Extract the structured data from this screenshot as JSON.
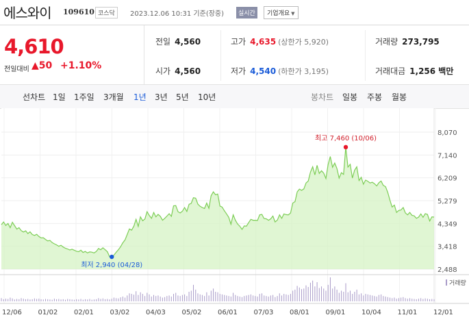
{
  "header": {
    "stock_name": "에스와이",
    "stock_code": "109610",
    "market_badge": "코스닥",
    "timestamp": "2023.12.06 10:31 기준(장중)",
    "realtime_badge": "실시간",
    "company_overview_button": "기업개요",
    "dropdown_icon": "triangle-down"
  },
  "quote": {
    "price": "4,610",
    "change_label": "전일대비",
    "change_amount": "▲50",
    "change_percent": "+1.10%",
    "up_color": "#e8182b",
    "down_color": "#1a5bd8"
  },
  "stats": {
    "prev_close": {
      "label": "전일",
      "value": "4,560"
    },
    "open": {
      "label": "시가",
      "value": "4,560"
    },
    "high": {
      "label": "고가",
      "value": "4,635",
      "limit": "(상한가 5,920)"
    },
    "low": {
      "label": "저가",
      "value": "4,540",
      "limit": "(하한가 3,195)"
    },
    "volume": {
      "label": "거래량",
      "value": "273,795"
    },
    "trade_value": {
      "label": "거래대금",
      "value": "1,256 백만"
    }
  },
  "tabs": {
    "line_label": "선차트",
    "line_periods": [
      "1일",
      "1주일",
      "3개월",
      "1년",
      "3년",
      "5년",
      "10년"
    ],
    "selected_period": "1년",
    "candle_label": "봉차트",
    "candle_periods": [
      "일봉",
      "주봉",
      "월봉"
    ]
  },
  "chart_data": {
    "type": "area",
    "x_tick_labels": [
      "12/06",
      "01/02",
      "02/01",
      "03/02",
      "04/03",
      "05/02",
      "06/01",
      "07/03",
      "08/01",
      "09/01",
      "10/04",
      "11/01",
      "12/01"
    ],
    "y_tick_labels": [
      "8,070",
      "7,140",
      "6,209",
      "5,279",
      "4,349",
      "3,418",
      "2,488"
    ],
    "ylim": [
      2488,
      8070
    ],
    "high_annotation": "최고 7,460 (10/06)",
    "low_annotation": "최저 2,940 (04/28)",
    "volume_legend": "거래량",
    "line_color": "#7ccd55",
    "fill_color": "#d6f3c4",
    "volume_color": "#a89ac8",
    "high_marker_color": "#e8182b",
    "low_marker_color": "#1a5bd8",
    "grid": true,
    "series": [
      {
        "values": [
          4300,
          4410,
          4270,
          4350,
          4180,
          4400,
          4260,
          4120,
          4180,
          4060,
          4000,
          4050,
          3940,
          4010,
          3900,
          3860,
          3910,
          3820,
          3760,
          3770,
          3700,
          3640,
          3660,
          3570,
          3520,
          3480,
          3420,
          3460,
          3390,
          3340,
          3310,
          3270,
          3300,
          3260,
          3220,
          3200,
          3260,
          3170,
          3210,
          3150,
          3190,
          3180,
          3150,
          3210,
          3330,
          3280,
          3360,
          3280,
          3200,
          3000,
          2990,
          3060,
          3180,
          3280,
          3400,
          3560,
          3680,
          3900,
          4130,
          4080,
          4240,
          4520,
          4230,
          4620,
          4460,
          4530,
          4830,
          4680,
          4560,
          4800,
          4620,
          4720,
          4640,
          4480,
          4560,
          4650,
          4750,
          4640,
          5070,
          5080,
          4830,
          4780,
          4850,
          5000,
          4840,
          5130,
          5170,
          5400,
          5380,
          5140,
          5050,
          5000,
          4960,
          5180,
          4970,
          5480,
          5640,
          5520,
          5550,
          5060,
          5020,
          4870,
          4740,
          4600,
          4320,
          4700,
          4480,
          4330,
          4240,
          4110,
          4250,
          4240,
          4380,
          4520,
          4480,
          4480,
          4470,
          4700,
          4720,
          4550,
          4540,
          4480,
          4540,
          4650,
          4410,
          4490,
          4700,
          4560,
          4740,
          4710,
          4700,
          4780,
          5180,
          5240,
          5640,
          5750,
          5700,
          5760,
          6000,
          6080,
          6440,
          6660,
          6330,
          6720,
          6390,
          6500,
          6400,
          6180,
          6750,
          7080,
          6640,
          6810,
          6590,
          6200,
          6420,
          6350,
          7460,
          6650,
          6760,
          6200,
          6520,
          6660,
          6100,
          6230,
          5950,
          6120,
          6070,
          6000,
          6030,
          5970,
          5880,
          6010,
          6080,
          5900,
          5850,
          5620,
          5300,
          5020,
          5100,
          4800,
          4880,
          4900,
          5000,
          4780,
          4700,
          4800,
          4680,
          4660,
          4560,
          4610,
          4740,
          4600,
          4750,
          4720,
          4450,
          4620,
          4610
        ]
      }
    ],
    "volume": [
      12,
      8,
      10,
      9,
      14,
      11,
      7,
      9,
      8,
      12,
      10,
      8,
      9,
      7,
      8,
      11,
      9,
      10,
      8,
      7,
      9,
      8,
      7,
      6,
      10,
      8,
      9,
      7,
      8,
      6,
      9,
      8,
      7,
      6,
      8,
      7,
      9,
      6,
      8,
      7,
      9,
      6,
      7,
      8,
      12,
      9,
      11,
      8,
      9,
      7,
      10,
      14,
      12,
      11,
      15,
      18,
      14,
      22,
      30,
      28,
      25,
      38,
      24,
      34,
      28,
      20,
      32,
      26,
      18,
      24,
      20,
      22,
      18,
      14,
      16,
      20,
      22,
      18,
      28,
      32,
      22,
      20,
      24,
      26,
      20,
      36,
      40,
      62,
      44,
      30,
      26,
      24,
      20,
      34,
      22,
      40,
      48,
      36,
      34,
      28,
      26,
      24,
      22,
      20,
      18,
      32,
      24,
      20,
      18,
      16,
      20,
      22,
      24,
      26,
      22,
      20,
      18,
      28,
      30,
      22,
      20,
      18,
      22,
      24,
      16,
      20,
      30,
      22,
      28,
      26,
      24,
      28,
      40,
      44,
      58,
      52,
      46,
      48,
      60,
      54,
      70,
      78,
      56,
      72,
      50,
      56,
      48,
      40,
      62,
      90,
      48,
      56,
      44,
      32,
      40,
      36,
      68,
      34,
      40,
      28,
      36,
      44,
      26,
      30,
      22,
      28,
      26,
      24,
      22,
      20,
      18,
      24,
      26,
      20,
      18,
      16,
      14,
      12,
      14,
      10,
      12,
      14,
      16,
      12,
      10,
      12,
      10,
      9,
      8,
      10,
      12,
      9,
      11,
      10,
      8,
      9,
      8
    ]
  }
}
